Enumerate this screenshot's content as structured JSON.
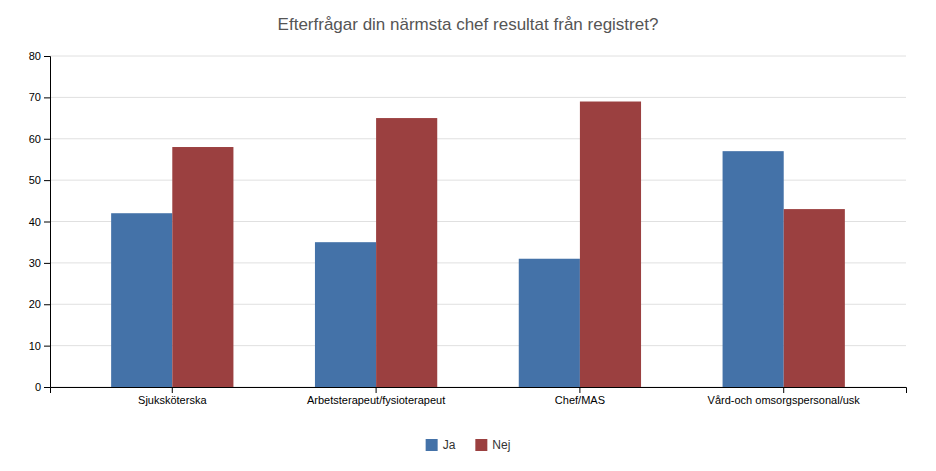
{
  "chart_data": {
    "type": "bar",
    "title": "Efterfrågar din närmsta chef resultat från registret?",
    "categories": [
      "Sjuksköterska",
      "Arbetsterapeut/fysioterapeut",
      "Chef/MAS",
      "Vård-och omsorgspersonal/usk"
    ],
    "series": [
      {
        "name": "Ja",
        "color": "#4472a8",
        "values": [
          42,
          35,
          31,
          57
        ]
      },
      {
        "name": "Nej",
        "color": "#9b4040",
        "values": [
          58,
          65,
          69,
          43
        ]
      }
    ],
    "ylim": [
      0,
      80
    ],
    "yticks": [
      0,
      10,
      20,
      30,
      40,
      50,
      60,
      70,
      80
    ],
    "grid": true,
    "legend": "bottom"
  }
}
